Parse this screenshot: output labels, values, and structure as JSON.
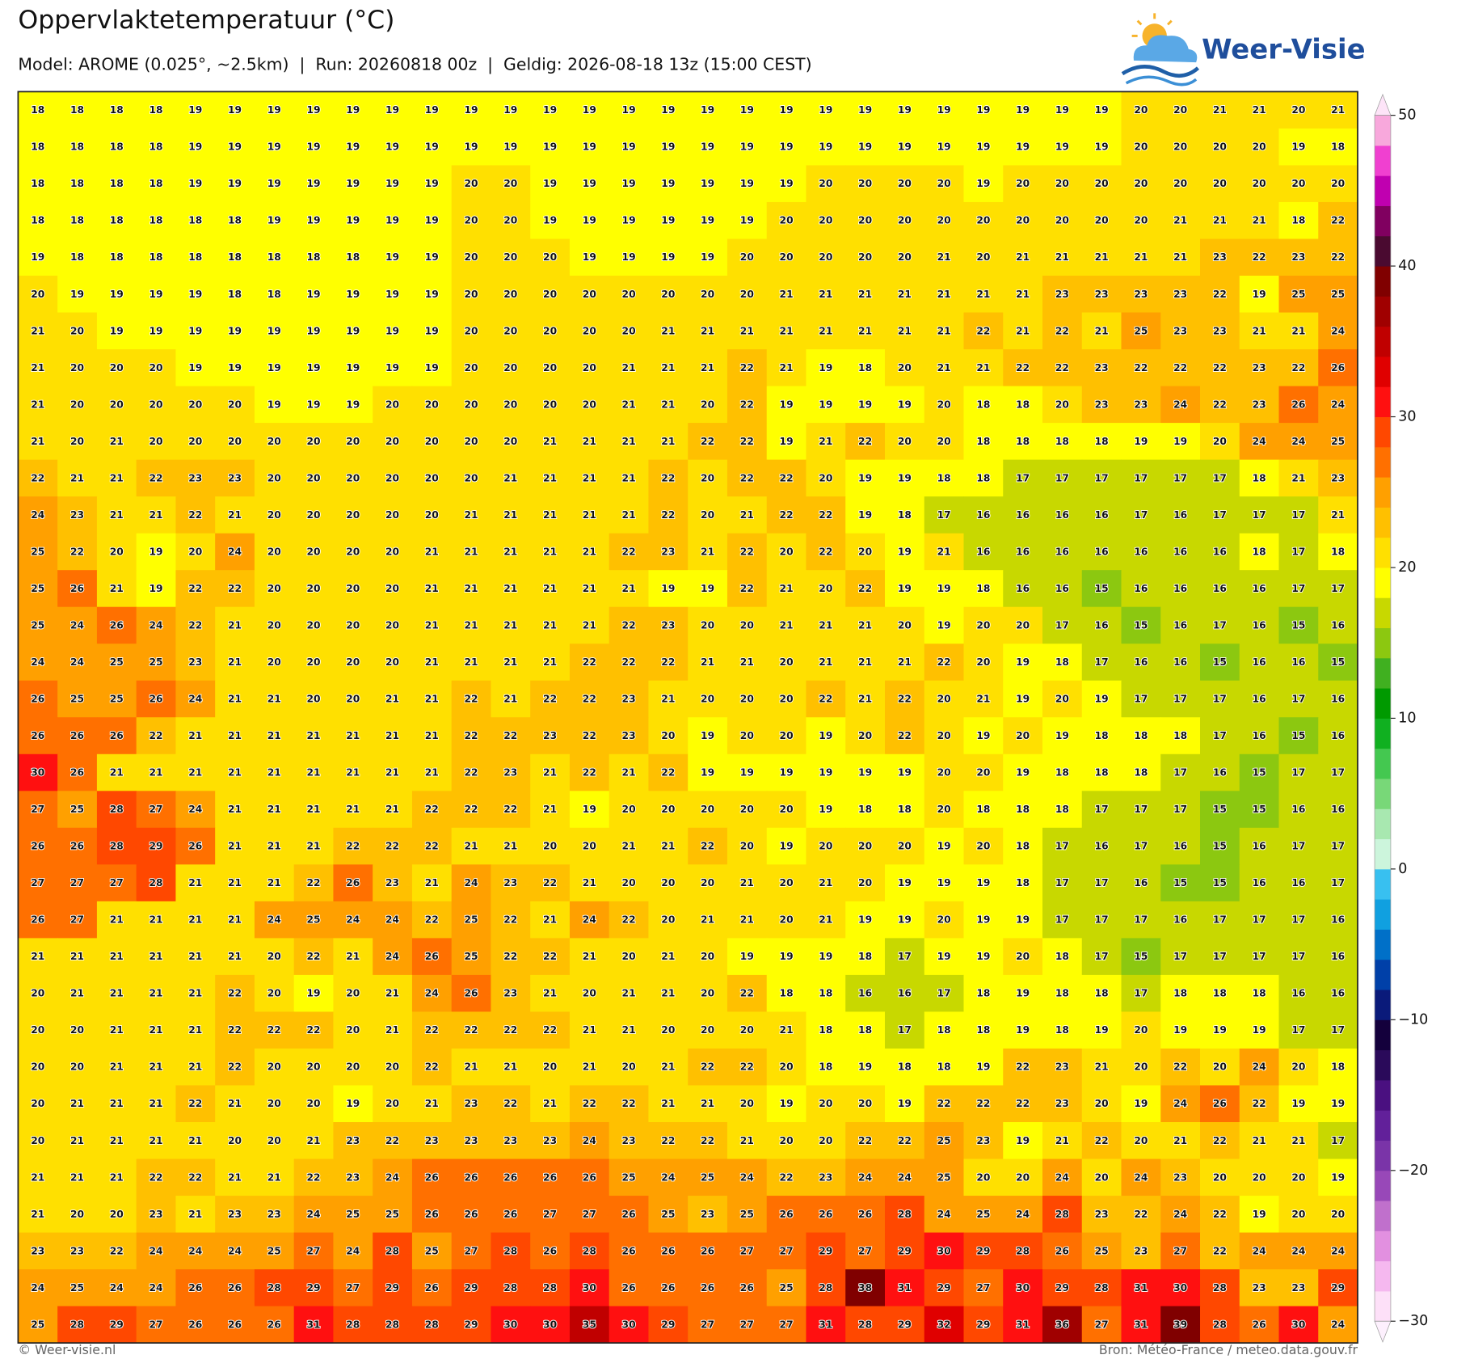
{
  "header": {
    "title": "Oppervlaktetemperatuur (°C)",
    "subtitle": "Model: AROME (0.025°, ~2.5km)  |  Run: 20260818 00z  |  Geldig: 2026-08-18 13z (15:00 CEST)",
    "logo": "Weer-Visie"
  },
  "map": {
    "type": "value-grid",
    "rows": [
      [
        18,
        18,
        18,
        18,
        19,
        19,
        19,
        19,
        19,
        19,
        19,
        19,
        19,
        19,
        19,
        19,
        19,
        19,
        19,
        19,
        19,
        19,
        19,
        19,
        19,
        19,
        19,
        19,
        20,
        20,
        21,
        21,
        20,
        21
      ],
      [
        18,
        18,
        18,
        18,
        19,
        19,
        19,
        19,
        19,
        19,
        19,
        19,
        19,
        19,
        19,
        19,
        19,
        19,
        19,
        19,
        19,
        19,
        19,
        19,
        19,
        19,
        19,
        19,
        20,
        20,
        20,
        20,
        19,
        18
      ],
      [
        18,
        18,
        18,
        18,
        19,
        19,
        19,
        19,
        19,
        19,
        19,
        20,
        20,
        19,
        19,
        19,
        19,
        19,
        19,
        19,
        20,
        20,
        20,
        20,
        19,
        20,
        20,
        20,
        20,
        20,
        20,
        20,
        20,
        20
      ],
      [
        18,
        18,
        18,
        18,
        18,
        18,
        19,
        19,
        19,
        19,
        19,
        20,
        20,
        19,
        19,
        19,
        19,
        19,
        19,
        20,
        20,
        20,
        20,
        20,
        20,
        20,
        20,
        20,
        20,
        21,
        21,
        21,
        18,
        22
      ],
      [
        19,
        18,
        18,
        18,
        18,
        18,
        18,
        18,
        18,
        19,
        19,
        20,
        20,
        20,
        19,
        19,
        19,
        19,
        20,
        20,
        20,
        20,
        20,
        21,
        20,
        21,
        21,
        21,
        21,
        21,
        23,
        22,
        23,
        22
      ],
      [
        20,
        19,
        19,
        19,
        19,
        18,
        18,
        19,
        19,
        19,
        19,
        20,
        20,
        20,
        20,
        20,
        20,
        20,
        20,
        21,
        21,
        21,
        21,
        21,
        21,
        21,
        23,
        23,
        23,
        23,
        22,
        19,
        25,
        25
      ],
      [
        21,
        20,
        19,
        19,
        19,
        19,
        19,
        19,
        19,
        19,
        19,
        20,
        20,
        20,
        20,
        20,
        21,
        21,
        21,
        21,
        21,
        21,
        21,
        21,
        22,
        21,
        22,
        21,
        25,
        23,
        23,
        21,
        21,
        24
      ],
      [
        21,
        20,
        20,
        20,
        19,
        19,
        19,
        19,
        19,
        19,
        19,
        20,
        20,
        20,
        20,
        21,
        21,
        21,
        22,
        21,
        19,
        18,
        20,
        21,
        21,
        22,
        22,
        23,
        22,
        22,
        22,
        23,
        22,
        26
      ],
      [
        21,
        20,
        20,
        20,
        20,
        20,
        19,
        19,
        19,
        20,
        20,
        20,
        20,
        20,
        20,
        21,
        21,
        20,
        22,
        19,
        19,
        19,
        19,
        20,
        18,
        18,
        20,
        23,
        23,
        24,
        22,
        23,
        26,
        24
      ],
      [
        21,
        20,
        21,
        20,
        20,
        20,
        20,
        20,
        20,
        20,
        20,
        20,
        20,
        21,
        21,
        21,
        21,
        22,
        22,
        19,
        21,
        22,
        20,
        20,
        18,
        18,
        18,
        18,
        19,
        19,
        20,
        24,
        24,
        25
      ],
      [
        22,
        21,
        21,
        22,
        23,
        23,
        20,
        20,
        20,
        20,
        20,
        20,
        21,
        21,
        21,
        21,
        22,
        20,
        22,
        22,
        20,
        19,
        19,
        18,
        18,
        17,
        17,
        17,
        17,
        17,
        17,
        18,
        21,
        23
      ],
      [
        24,
        23,
        21,
        21,
        22,
        21,
        20,
        20,
        20,
        20,
        20,
        21,
        21,
        21,
        21,
        21,
        22,
        20,
        21,
        22,
        22,
        19,
        18,
        17,
        16,
        16,
        16,
        16,
        17,
        16,
        17,
        17,
        17,
        21
      ],
      [
        25,
        22,
        20,
        19,
        20,
        24,
        20,
        20,
        20,
        20,
        21,
        21,
        21,
        21,
        21,
        22,
        23,
        21,
        22,
        20,
        22,
        20,
        19,
        21,
        16,
        16,
        16,
        16,
        16,
        16,
        16,
        18,
        17,
        18
      ],
      [
        25,
        26,
        21,
        19,
        22,
        22,
        20,
        20,
        20,
        20,
        21,
        21,
        21,
        21,
        21,
        21,
        19,
        19,
        22,
        21,
        20,
        22,
        19,
        19,
        18,
        16,
        16,
        15,
        16,
        16,
        16,
        16,
        17,
        17
      ],
      [
        25,
        24,
        26,
        24,
        22,
        21,
        20,
        20,
        20,
        20,
        21,
        21,
        21,
        21,
        21,
        22,
        23,
        20,
        20,
        21,
        21,
        21,
        20,
        19,
        20,
        20,
        17,
        16,
        15,
        16,
        17,
        16,
        15,
        16
      ],
      [
        24,
        24,
        25,
        25,
        23,
        21,
        20,
        20,
        20,
        20,
        21,
        21,
        21,
        21,
        22,
        22,
        22,
        21,
        21,
        20,
        21,
        21,
        21,
        22,
        20,
        19,
        18,
        17,
        16,
        16,
        15,
        16,
        16,
        15
      ],
      [
        26,
        25,
        25,
        26,
        24,
        21,
        21,
        20,
        20,
        21,
        21,
        22,
        21,
        22,
        22,
        23,
        21,
        20,
        20,
        20,
        22,
        21,
        22,
        20,
        21,
        19,
        20,
        19,
        17,
        17,
        17,
        16,
        17,
        16
      ],
      [
        26,
        26,
        26,
        22,
        21,
        21,
        21,
        21,
        21,
        21,
        21,
        22,
        22,
        23,
        22,
        23,
        20,
        19,
        20,
        20,
        19,
        20,
        22,
        20,
        19,
        20,
        19,
        18,
        18,
        18,
        17,
        16,
        15,
        16
      ],
      [
        30,
        26,
        21,
        21,
        21,
        21,
        21,
        21,
        21,
        21,
        21,
        22,
        23,
        21,
        22,
        21,
        22,
        19,
        19,
        19,
        19,
        19,
        19,
        20,
        20,
        19,
        18,
        18,
        18,
        17,
        16,
        15,
        17,
        17
      ],
      [
        27,
        25,
        28,
        27,
        24,
        21,
        21,
        21,
        21,
        21,
        22,
        22,
        22,
        21,
        19,
        20,
        20,
        20,
        20,
        20,
        19,
        18,
        18,
        20,
        18,
        18,
        18,
        17,
        17,
        17,
        15,
        15,
        16,
        16
      ],
      [
        26,
        26,
        28,
        29,
        26,
        21,
        21,
        21,
        22,
        22,
        22,
        21,
        21,
        20,
        20,
        21,
        21,
        22,
        20,
        19,
        20,
        20,
        20,
        19,
        20,
        18,
        17,
        16,
        17,
        16,
        15,
        16,
        17,
        17
      ],
      [
        27,
        27,
        27,
        28,
        21,
        21,
        21,
        22,
        26,
        23,
        21,
        24,
        23,
        22,
        21,
        20,
        20,
        20,
        21,
        20,
        21,
        20,
        19,
        19,
        19,
        18,
        17,
        17,
        16,
        15,
        15,
        16,
        16,
        17
      ],
      [
        26,
        27,
        21,
        21,
        21,
        21,
        24,
        25,
        24,
        24,
        22,
        25,
        22,
        21,
        24,
        22,
        20,
        21,
        21,
        20,
        21,
        19,
        19,
        20,
        19,
        19,
        17,
        17,
        17,
        16,
        17,
        17,
        17,
        16
      ],
      [
        21,
        21,
        21,
        21,
        21,
        21,
        20,
        22,
        21,
        24,
        26,
        25,
        22,
        22,
        21,
        20,
        21,
        20,
        19,
        19,
        19,
        18,
        17,
        19,
        19,
        20,
        18,
        17,
        15,
        17,
        17,
        17,
        17,
        16
      ],
      [
        20,
        21,
        21,
        21,
        21,
        22,
        20,
        19,
        20,
        21,
        24,
        26,
        23,
        21,
        20,
        21,
        21,
        20,
        22,
        18,
        18,
        16,
        16,
        17,
        18,
        19,
        18,
        18,
        17,
        18,
        18,
        18,
        16,
        16
      ],
      [
        20,
        20,
        21,
        21,
        21,
        22,
        22,
        22,
        20,
        21,
        22,
        22,
        22,
        22,
        21,
        21,
        20,
        20,
        20,
        21,
        18,
        18,
        17,
        18,
        18,
        19,
        18,
        19,
        20,
        19,
        19,
        19,
        17,
        17
      ],
      [
        20,
        20,
        21,
        21,
        21,
        22,
        20,
        20,
        20,
        20,
        22,
        21,
        21,
        20,
        21,
        20,
        21,
        22,
        22,
        20,
        18,
        19,
        18,
        18,
        19,
        22,
        23,
        21,
        20,
        22,
        20,
        24,
        20,
        18
      ],
      [
        20,
        21,
        21,
        21,
        22,
        21,
        20,
        20,
        19,
        20,
        21,
        23,
        22,
        21,
        22,
        22,
        21,
        21,
        20,
        19,
        20,
        20,
        19,
        22,
        22,
        22,
        23,
        20,
        19,
        24,
        26,
        22,
        19,
        19
      ],
      [
        20,
        21,
        21,
        21,
        21,
        20,
        20,
        21,
        23,
        22,
        23,
        23,
        23,
        23,
        24,
        23,
        22,
        22,
        21,
        20,
        20,
        22,
        22,
        25,
        23,
        19,
        21,
        22,
        20,
        21,
        22,
        21,
        21,
        17
      ],
      [
        21,
        21,
        21,
        22,
        22,
        21,
        21,
        22,
        23,
        24,
        26,
        26,
        26,
        26,
        26,
        25,
        24,
        25,
        24,
        22,
        23,
        24,
        24,
        25,
        20,
        20,
        24,
        20,
        24,
        23,
        20,
        20,
        20,
        19
      ],
      [
        21,
        20,
        20,
        23,
        21,
        23,
        23,
        24,
        25,
        25,
        26,
        26,
        26,
        27,
        27,
        26,
        25,
        23,
        25,
        26,
        26,
        26,
        28,
        24,
        25,
        24,
        28,
        23,
        22,
        24,
        22,
        19,
        20,
        20
      ],
      [
        23,
        23,
        22,
        24,
        24,
        24,
        25,
        27,
        24,
        28,
        25,
        27,
        28,
        26,
        28,
        26,
        26,
        26,
        27,
        27,
        29,
        27,
        29,
        30,
        29,
        28,
        26,
        25,
        23,
        27,
        22,
        24,
        24,
        24
      ],
      [
        24,
        25,
        24,
        24,
        26,
        26,
        28,
        29,
        27,
        29,
        26,
        29,
        28,
        28,
        30,
        26,
        26,
        26,
        26,
        25,
        28,
        38,
        31,
        29,
        27,
        30,
        29,
        28,
        31,
        30,
        28,
        23,
        23,
        29
      ],
      [
        25,
        28,
        29,
        27,
        26,
        26,
        26,
        31,
        28,
        28,
        28,
        29,
        30,
        30,
        35,
        30,
        29,
        27,
        27,
        27,
        31,
        28,
        29,
        32,
        29,
        31,
        36,
        27,
        31,
        39,
        28,
        26,
        30,
        24
      ]
    ],
    "colorbar": {
      "ylim": [
        -30,
        50
      ],
      "yticks": [
        50,
        40,
        30,
        20,
        10,
        0,
        {
          "value": -10,
          "label": "−10"
        },
        {
          "value": -20,
          "label": "−20"
        },
        {
          "value": -30,
          "label": "−30"
        }
      ],
      "colors": [
        "#fde0f8",
        "#f5b8ef",
        "#e290e0",
        "#c070cc",
        "#9848b8",
        "#7a34a8",
        "#62209a",
        "#4a1080",
        "#2a0a5a",
        "#14003c",
        "#0a1a7a",
        "#0040a8",
        "#0070c8",
        "#10a0e0",
        "#38c0f0",
        "#ccf5dc",
        "#a8e8b0",
        "#78d878",
        "#44c850",
        "#10b020",
        "#009a00",
        "#40b020",
        "#8cc810",
        "#c8d800",
        "#ffff00",
        "#ffe000",
        "#ffc000",
        "#ffa000",
        "#ff7000",
        "#ff4800",
        "#ff1010",
        "#e00000",
        "#c00000",
        "#a00000",
        "#800000",
        "#4a0a30",
        "#800060",
        "#c000b0",
        "#f040d0",
        "#f8a8dc"
      ],
      "extend_colors": [
        "#fdf0fd",
        "#fde4f8"
      ]
    }
  },
  "footer": {
    "left": "© Weer-visie.nl",
    "right": "Bron: Météo-France / meteo.data.gouv.fr"
  }
}
